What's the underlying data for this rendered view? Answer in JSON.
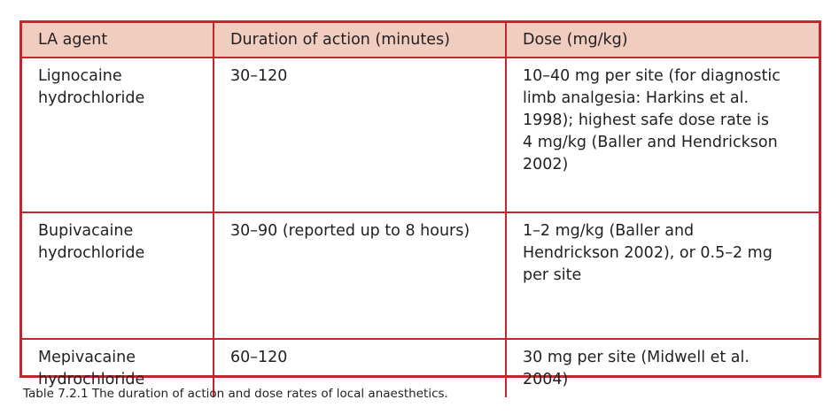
{
  "table": {
    "headers": [
      "LA agent",
      "Duration of action (minutes)",
      "Dose (mg/kg)"
    ],
    "rows": [
      {
        "agent": [
          "Lignocaine",
          "hydrochloride"
        ],
        "duration": "30–120",
        "dose": [
          "10–40 mg per site (for diagnostic",
          "limb analgesia: Harkins et al.",
          "1998); highest safe dose rate is",
          "4 mg/kg (Baller and Hendrickson",
          "2002)"
        ]
      },
      {
        "agent": [
          "Bupivacaine",
          "hydrochloride"
        ],
        "duration": "30–90 (reported up to 8 hours)",
        "dose": [
          "1–2 mg/kg (Baller and",
          "Hendrickson 2002), or 0.5–2 mg",
          "per site"
        ]
      },
      {
        "agent": [
          "Mepivacaine",
          "hydrochloride"
        ],
        "duration": "60–120",
        "dose": [
          "30 mg per site (Midwell et al.",
          "2004)"
        ]
      }
    ]
  },
  "caption": "Table 7.2.1 The duration of action and dose rates of local anaesthetics.",
  "colors": {
    "border": "#c1272d",
    "header_bg": "#f1cdc0",
    "text": "#231f20"
  }
}
